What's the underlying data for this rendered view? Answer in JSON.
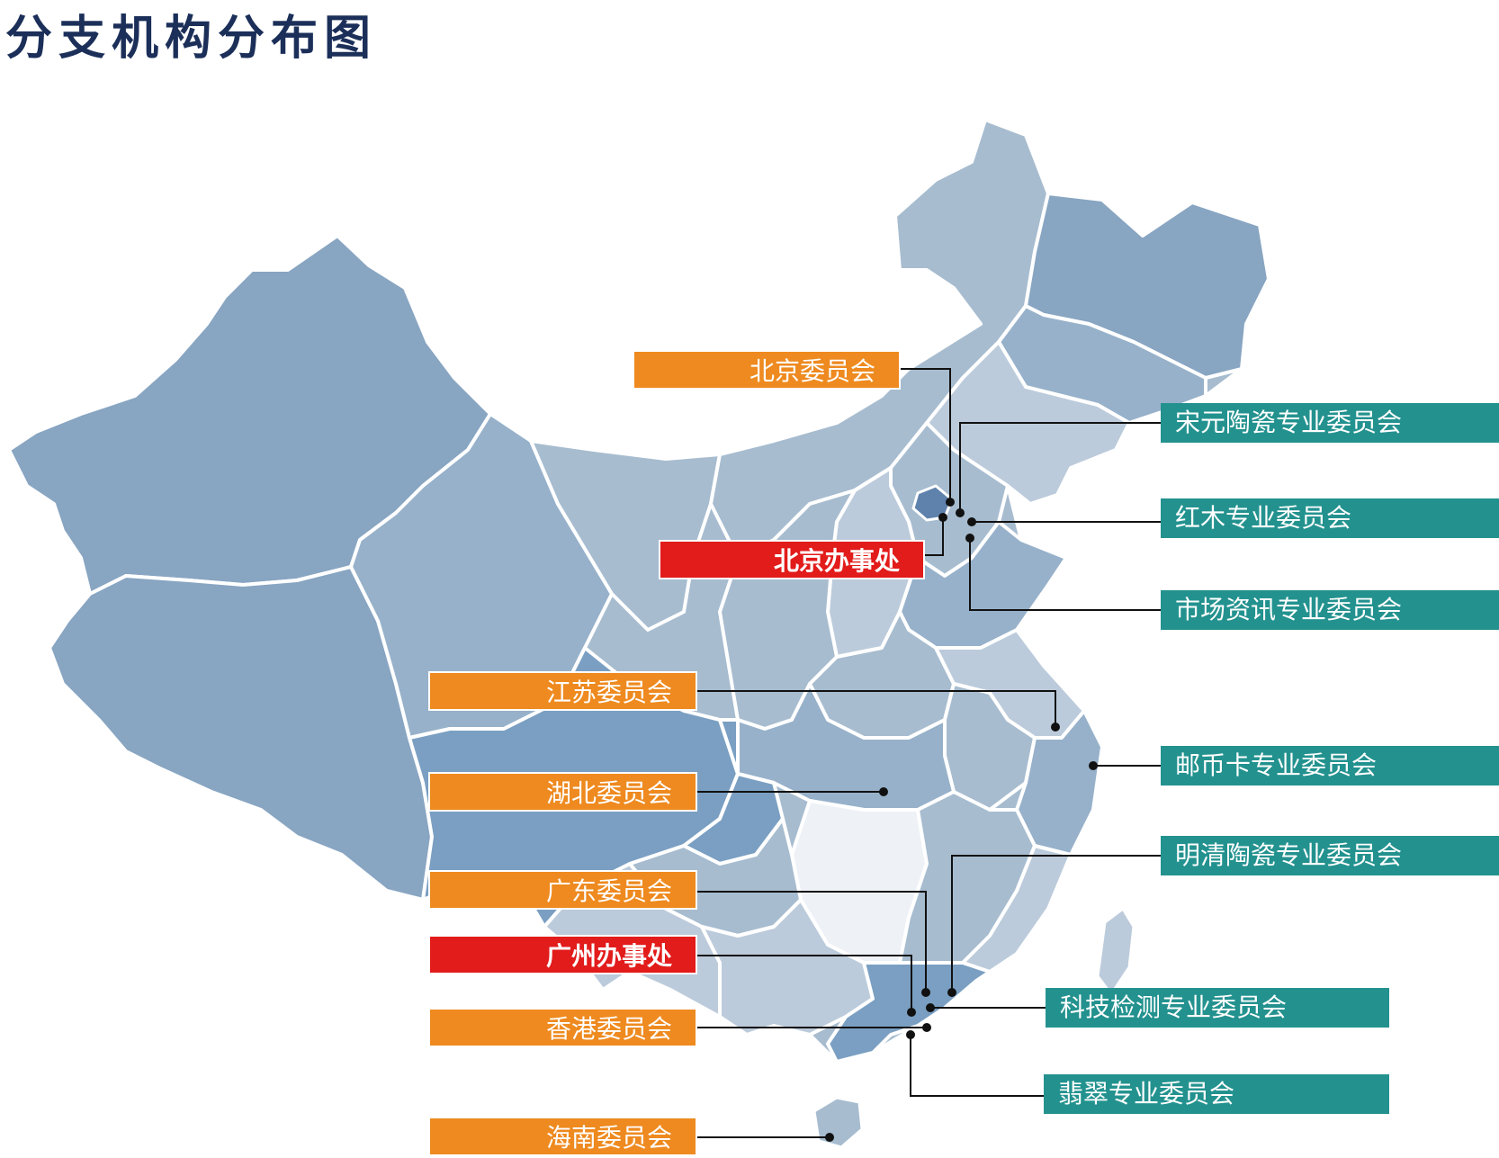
{
  "page": {
    "title": "分支机构分布图"
  },
  "colors": {
    "title": "#1b2f59",
    "orange_label": "#ee8a1f",
    "red_label": "#e21b1b",
    "teal_label": "#23928f",
    "label_text": "#ffffff",
    "map_base": "#a7bccf",
    "map_dark": "#88a5c2",
    "map_mid": "#97b1ca",
    "map_light": "#bccbdb",
    "map_lightest": "#eef2f7",
    "map_blue": "#7a9fc2",
    "border": "#ffffff",
    "leader_line": "#111111"
  },
  "labels": {
    "beijing_committee": "北京委员会",
    "beijing_office": "北京办事处",
    "jiangsu_committee": "江苏委员会",
    "hubei_committee": "湖北委员会",
    "guangdong_committee": "广东委员会",
    "guangzhou_office": "广州办事处",
    "hongkong_committee": "香港委员会",
    "hainan_committee": "海南委员会",
    "songyuan_porcelain": "宋元陶瓷专业委员会",
    "mahogany": "红木专业委员会",
    "market_info": "市场资讯专业委员会",
    "stamps_coins_cards": "邮币卡专业委员会",
    "mingqing_porcelain": "明清陶瓷专业委员会",
    "tech_testing": "科技检测专业委员会",
    "jadeite": "翡翠专业委员会"
  }
}
